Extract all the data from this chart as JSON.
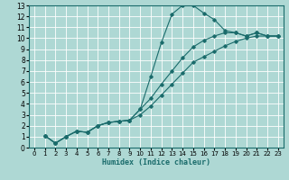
{
  "title": "",
  "xlabel": "Humidex (Indice chaleur)",
  "ylabel": "",
  "bg_color": "#aed8d4",
  "grid_color": "#ffffff",
  "line_color": "#1a6b6b",
  "xlim": [
    -0.5,
    23.5
  ],
  "ylim": [
    0,
    13
  ],
  "xticks": [
    0,
    1,
    2,
    3,
    4,
    5,
    6,
    7,
    8,
    9,
    10,
    11,
    12,
    13,
    14,
    15,
    16,
    17,
    18,
    19,
    20,
    21,
    22,
    23
  ],
  "yticks": [
    0,
    1,
    2,
    3,
    4,
    5,
    6,
    7,
    8,
    9,
    10,
    11,
    12,
    13
  ],
  "line1_x": [
    1,
    2,
    3,
    4,
    5,
    6,
    7,
    8,
    9,
    10,
    11,
    12,
    13,
    14,
    15,
    16,
    17,
    18,
    19,
    20,
    21,
    22,
    23
  ],
  "line1_y": [
    1.1,
    0.4,
    1.0,
    1.5,
    1.4,
    2.0,
    2.3,
    2.4,
    2.5,
    3.5,
    6.5,
    9.6,
    12.2,
    13.0,
    13.0,
    12.3,
    11.7,
    10.7,
    10.5,
    10.2,
    10.5,
    10.2,
    10.2
  ],
  "line2_x": [
    1,
    2,
    3,
    4,
    5,
    6,
    7,
    8,
    9,
    10,
    11,
    12,
    13,
    14,
    15,
    16,
    17,
    18,
    19,
    20,
    21,
    22,
    23
  ],
  "line2_y": [
    1.1,
    0.4,
    1.0,
    1.5,
    1.4,
    2.0,
    2.3,
    2.4,
    2.5,
    3.5,
    4.5,
    5.8,
    7.0,
    8.2,
    9.2,
    9.8,
    10.2,
    10.5,
    10.5,
    10.2,
    10.5,
    10.2,
    10.2
  ],
  "line3_x": [
    1,
    2,
    3,
    4,
    5,
    6,
    7,
    8,
    9,
    10,
    11,
    12,
    13,
    14,
    15,
    16,
    17,
    18,
    19,
    20,
    21,
    22,
    23
  ],
  "line3_y": [
    1.1,
    0.4,
    1.0,
    1.5,
    1.4,
    2.0,
    2.3,
    2.4,
    2.5,
    3.0,
    3.8,
    4.8,
    5.8,
    6.8,
    7.8,
    8.3,
    8.8,
    9.3,
    9.7,
    10.0,
    10.2,
    10.2,
    10.2
  ]
}
